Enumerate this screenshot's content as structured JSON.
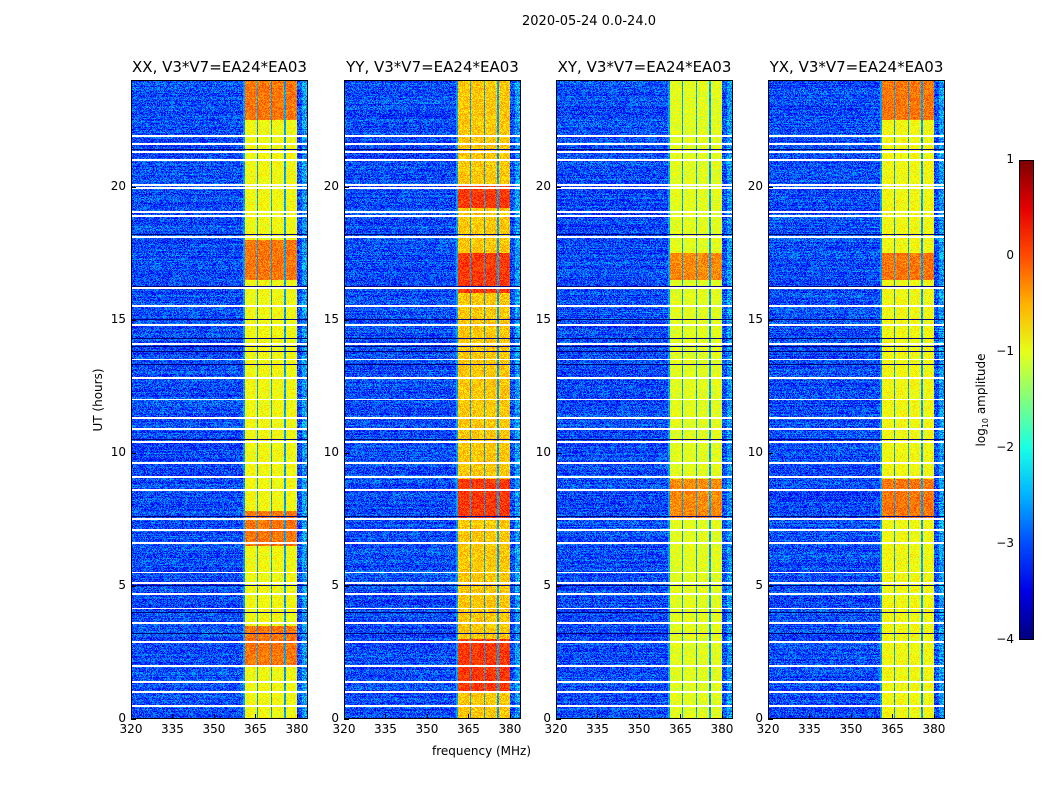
{
  "chart_data": {
    "type": "heatmap",
    "title": "2020-05-24 0.0-24.0",
    "xlabel": "frequency (MHz)",
    "ylabel": "UT (hours)",
    "xlim": [
      320,
      384
    ],
    "ylim": [
      0,
      24
    ],
    "xticks": [
      320,
      335,
      350,
      365,
      380
    ],
    "yticks": [
      0,
      5,
      10,
      15,
      20
    ],
    "panels": [
      {
        "title": "XX, V3*V7=EA24*EA03",
        "band_level": -0.9,
        "hot_hours": [
          [
            2.0,
            3.5
          ],
          [
            6.5,
            7.8
          ],
          [
            16.5,
            18.0
          ],
          [
            22.5,
            24.0
          ]
        ]
      },
      {
        "title": "YY, V3*V7=EA24*EA03",
        "band_level": -0.6,
        "hot_hours": [
          [
            1.0,
            3.0
          ],
          [
            7.5,
            9.0
          ],
          [
            16.0,
            17.5
          ],
          [
            19.2,
            20.0
          ]
        ]
      },
      {
        "title": "XY, V3*V7=EA24*EA03",
        "band_level": -1.0,
        "hot_hours": [
          [
            7.5,
            9.0
          ],
          [
            16.5,
            17.5
          ]
        ]
      },
      {
        "title": "YX, V3*V7=EA24*EA03",
        "band_level": -0.9,
        "hot_hours": [
          [
            7.5,
            9.0
          ],
          [
            16.5,
            17.5
          ],
          [
            22.5,
            24.0
          ]
        ]
      }
    ],
    "bright_band_mhz": [
      360.5,
      380
    ],
    "band_dividers_mhz": [
      365,
      370,
      375
    ],
    "background_level": -3.0,
    "flagged_gap_hours": [
      0.5,
      1.0,
      1.4,
      2.0,
      2.9,
      3.6,
      4.15,
      4.7,
      5.1,
      5.5,
      6.6,
      7.1,
      7.5,
      8.6,
      9.1,
      9.6,
      10.4,
      10.9,
      11.3,
      12.0,
      12.8,
      13.5,
      14.1,
      14.8,
      15.5,
      16.2,
      18.1,
      18.9,
      19.05,
      19.95,
      20.05,
      21.0,
      21.3,
      21.6,
      21.9
    ],
    "dark_line_hours": [
      3.2,
      4.0,
      5.0,
      7.6,
      10.5,
      13.3,
      13.8,
      14.0,
      14.3,
      15.0,
      16.25,
      18.2,
      21.4
    ],
    "colorbar": {
      "label": "log10 amplitude",
      "label_base": "log",
      "label_sub": "10",
      "label_rest": " amplitude",
      "range": [
        -4,
        1
      ],
      "ticks": [
        "1",
        "0",
        "−1",
        "−2",
        "−3",
        "−4"
      ],
      "tick_values": [
        1,
        0,
        -1,
        -2,
        -3,
        -4
      ],
      "colormap": "jet"
    }
  }
}
